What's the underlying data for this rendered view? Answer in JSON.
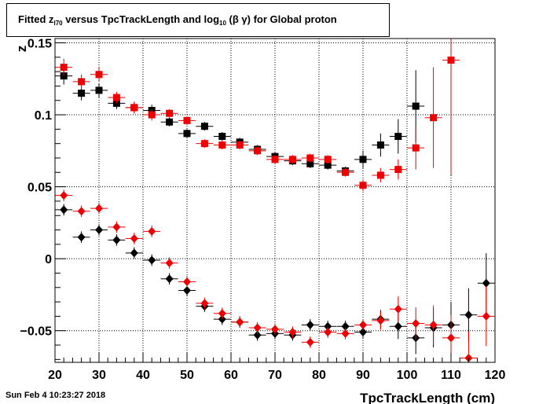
{
  "title": {
    "prefix": "Fitted  z",
    "sub1": "I70",
    "middle": "  versus TpcTrackLength and log",
    "sub2": "10",
    "suffix": " (β γ) for Global proton"
  },
  "timestamp": "Sun Feb  4 10:23:27 2018",
  "chart_data": {
    "type": "scatter",
    "xlabel": "TpcTrackLength (cm)",
    "ylabel": "z",
    "xlim": [
      20,
      120
    ],
    "ylim": [
      -0.072,
      0.153
    ],
    "grid": true,
    "x_ticks": [
      20,
      30,
      40,
      50,
      60,
      70,
      80,
      90,
      100,
      110,
      120
    ],
    "x_tick_labels": [
      "20",
      "30",
      "40",
      "50",
      "60",
      "70",
      "80",
      "90",
      "100",
      "110",
      "120"
    ],
    "y_ticks": [
      -0.05,
      0,
      0.05,
      0.1,
      0.15
    ],
    "y_tick_labels": [
      "−0.05",
      "0",
      "0.05",
      "0.1",
      "0.15"
    ],
    "series": [
      {
        "marker": "square",
        "color": "#000000",
        "x": [
          22,
          26,
          30,
          34,
          38,
          42,
          46,
          50,
          54,
          58,
          62,
          66,
          70,
          74,
          78,
          82,
          86,
          90,
          94,
          98,
          102
        ],
        "y": [
          0.127,
          0.115,
          0.117,
          0.108,
          0.105,
          0.103,
          0.095,
          0.087,
          0.092,
          0.085,
          0.081,
          0.076,
          0.071,
          0.068,
          0.066,
          0.065,
          0.061,
          0.069,
          0.079,
          0.085,
          0.106
        ],
        "yerr": [
          0.006,
          0.005,
          0.005,
          0.004,
          0.004,
          0.004,
          0.003,
          0.003,
          0.003,
          0.003,
          0.003,
          0.003,
          0.003,
          0.003,
          0.003,
          0.003,
          0.003,
          0.006,
          0.008,
          0.012,
          0.025
        ]
      },
      {
        "marker": "square",
        "color": "#ee0000",
        "x": [
          22,
          26,
          30,
          34,
          38,
          42,
          46,
          50,
          54,
          58,
          62,
          66,
          70,
          74,
          78,
          82,
          86,
          90,
          94,
          98,
          102,
          106,
          110
        ],
        "y": [
          0.133,
          0.123,
          0.128,
          0.112,
          0.105,
          0.1,
          0.101,
          0.096,
          0.08,
          0.079,
          0.079,
          0.075,
          0.069,
          0.069,
          0.07,
          0.069,
          0.06,
          0.051,
          0.058,
          0.062,
          0.077,
          0.098,
          0.138
        ],
        "yerr": [
          0.006,
          0.005,
          0.005,
          0.004,
          0.004,
          0.004,
          0.003,
          0.003,
          0.003,
          0.003,
          0.003,
          0.003,
          0.003,
          0.003,
          0.003,
          0.003,
          0.003,
          0.004,
          0.005,
          0.007,
          0.015,
          0.035,
          0.08
        ]
      },
      {
        "marker": "diamond",
        "color": "#000000",
        "x": [
          22,
          26,
          30,
          34,
          38,
          42,
          46,
          50,
          54,
          58,
          62,
          66,
          70,
          74,
          78,
          82,
          86,
          90,
          94,
          98,
          102,
          106,
          110,
          114,
          118
        ],
        "y": [
          0.034,
          0.015,
          0.02,
          0.013,
          0.004,
          -0.001,
          -0.014,
          -0.022,
          -0.033,
          -0.042,
          -0.044,
          -0.053,
          -0.052,
          -0.053,
          -0.046,
          -0.047,
          -0.047,
          -0.051,
          -0.042,
          -0.047,
          -0.055,
          -0.048,
          -0.046,
          -0.039,
          -0.017
        ]
      },
      {
        "marker": "diamond",
        "color": "#ee0000",
        "x": [
          22,
          26,
          30,
          34,
          38,
          42,
          46,
          50,
          54,
          58,
          62,
          66,
          70,
          74,
          78,
          82,
          86,
          90,
          94,
          98,
          102,
          106,
          110,
          114,
          118
        ],
        "y": [
          0.044,
          0.033,
          0.035,
          0.022,
          0.014,
          0.019,
          -0.003,
          -0.016,
          -0.031,
          -0.038,
          -0.044,
          -0.048,
          -0.049,
          -0.051,
          -0.058,
          -0.051,
          -0.052,
          -0.046,
          -0.043,
          -0.035,
          -0.045,
          -0.046,
          -0.055,
          -0.069,
          -0.04
        ]
      }
    ]
  }
}
